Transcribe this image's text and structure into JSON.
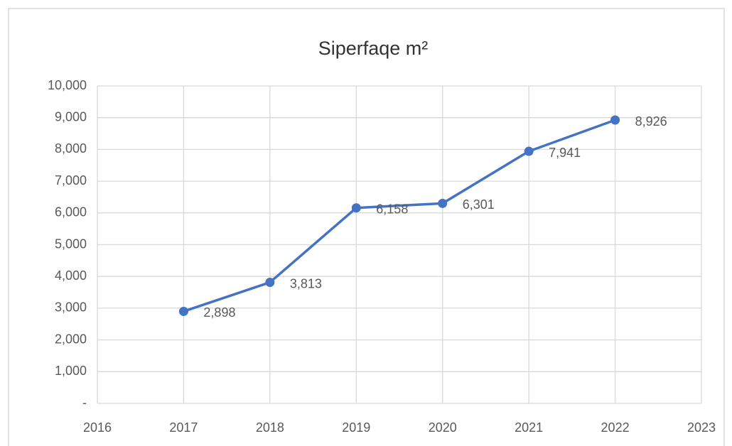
{
  "chart_data": {
    "type": "line",
    "title": "Siperfaqe m²",
    "x": [
      2017,
      2018,
      2019,
      2020,
      2021,
      2022
    ],
    "series": [
      {
        "name": "Siperfaqe m²",
        "color": "#4472c4",
        "values": [
          2898,
          3813,
          6158,
          6301,
          7941,
          8926
        ],
        "value_labels": [
          "2,898",
          "3,813",
          "6,158",
          "6,301",
          "7,941",
          "8,926"
        ]
      }
    ],
    "xlim": [
      2016,
      2023
    ],
    "xticks": [
      2016,
      2017,
      2018,
      2019,
      2020,
      2021,
      2022,
      2023
    ],
    "ylim": [
      0,
      10000
    ],
    "yticks": [
      {
        "value": 0,
        "label": "-"
      },
      {
        "value": 1000,
        "label": "1,000"
      },
      {
        "value": 2000,
        "label": "2,000"
      },
      {
        "value": 3000,
        "label": "3,000"
      },
      {
        "value": 4000,
        "label": "4,000"
      },
      {
        "value": 5000,
        "label": "5,000"
      },
      {
        "value": 6000,
        "label": "6,000"
      },
      {
        "value": 7000,
        "label": "7,000"
      },
      {
        "value": 8000,
        "label": "8,000"
      },
      {
        "value": 9000,
        "label": "9,000"
      },
      {
        "value": 10000,
        "label": "10,000"
      }
    ],
    "grid": true
  }
}
